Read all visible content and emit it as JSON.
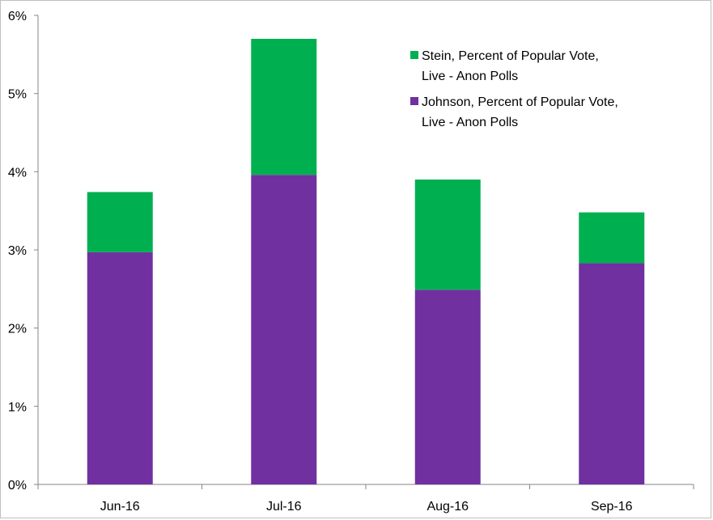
{
  "chart_data": {
    "type": "bar",
    "stacked": true,
    "title": "",
    "xlabel": "",
    "ylabel": "",
    "categories": [
      "Jun-16",
      "Jul-16",
      "Aug-16",
      "Sep-16"
    ],
    "ylim": [
      0,
      6
    ],
    "yticks": [
      {
        "value": 0,
        "label": "0%"
      },
      {
        "value": 1,
        "label": "1%"
      },
      {
        "value": 2,
        "label": "2%"
      },
      {
        "value": 3,
        "label": "3%"
      },
      {
        "value": 4,
        "label": "4%"
      },
      {
        "value": 5,
        "label": "5%"
      },
      {
        "value": 6,
        "label": "6%"
      }
    ],
    "series": [
      {
        "name": "Johnson, Percent of Popular Vote, Live - Anon Polls",
        "legend_lines": [
          "Johnson, Percent of Popular Vote,",
          "Live - Anon Polls"
        ],
        "color": "#7030a0",
        "values": [
          2.97,
          3.96,
          2.49,
          2.83
        ]
      },
      {
        "name": "Stein, Percent of Popular Vote, Live - Anon Polls",
        "legend_lines": [
          "Stein, Percent of Popular Vote,",
          "Live - Anon Polls"
        ],
        "color": "#00b050",
        "values": [
          0.77,
          1.74,
          1.41,
          0.65
        ]
      }
    ],
    "legend_order": [
      1,
      0
    ],
    "legend_position": "top-right",
    "grid": false
  }
}
